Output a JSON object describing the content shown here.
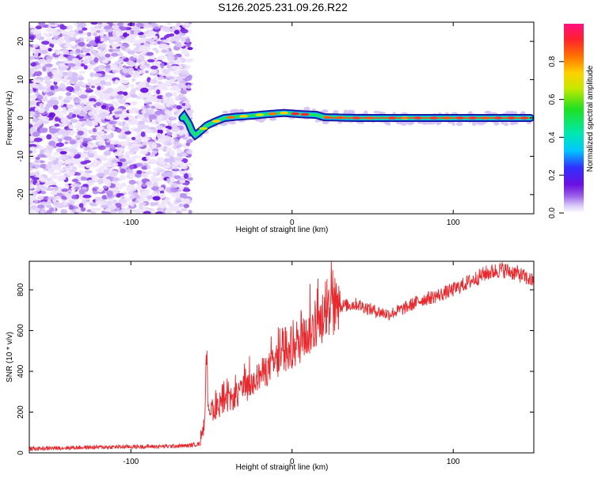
{
  "title": "S126.2025.231.09.26.R22",
  "chart_data": [
    {
      "type": "heatmap",
      "panel": "spectrogram",
      "xlabel": "Height of straight line (km)",
      "ylabel": "Frequency (Hz)",
      "xlim": [
        -163,
        150
      ],
      "ylim": [
        -25,
        25
      ],
      "x_ticks": [
        -100,
        0,
        100
      ],
      "y_ticks": [
        20,
        10,
        0,
        -10,
        -20
      ],
      "noise_region_x": [
        -163,
        -66
      ],
      "carrier_track": [
        {
          "x": -67,
          "y": 0.5
        },
        {
          "x": -64,
          "y": -1.5
        },
        {
          "x": -62,
          "y": -3.5
        },
        {
          "x": -60,
          "y": -4.5
        },
        {
          "x": -57,
          "y": -3.5
        },
        {
          "x": -53,
          "y": -2.0
        },
        {
          "x": -48,
          "y": -1.0
        },
        {
          "x": -42,
          "y": 0.0
        },
        {
          "x": -35,
          "y": 0.3
        },
        {
          "x": -25,
          "y": 0.6
        },
        {
          "x": -15,
          "y": 1.0
        },
        {
          "x": -5,
          "y": 1.3
        },
        {
          "x": 5,
          "y": 1.0
        },
        {
          "x": 15,
          "y": 0.8
        },
        {
          "x": 20,
          "y": 0.2
        },
        {
          "x": 40,
          "y": 0.0
        },
        {
          "x": 80,
          "y": 0.0
        },
        {
          "x": 120,
          "y": 0.0
        },
        {
          "x": 148,
          "y": 0.0
        }
      ],
      "colorbar": {
        "label": "Normalized spectral amplitude",
        "range": [
          0,
          1
        ],
        "ticks": [
          0.0,
          0.2,
          0.4,
          0.6,
          0.8
        ],
        "tick_labels": [
          "0.0",
          "0.2",
          "0.4",
          "0.6",
          "0.8"
        ],
        "colors": [
          "#ffffff",
          "#d8c8f8",
          "#9a5ee8",
          "#6a10e0",
          "#3030ff",
          "#00c8ff",
          "#00e8b0",
          "#20e020",
          "#c8e800",
          "#ffd000",
          "#ff7000",
          "#ff2030",
          "#ff1080"
        ]
      }
    },
    {
      "type": "line",
      "panel": "snr",
      "xlabel": "Height of straight line (km)",
      "ylabel": "SNR (10 * v/v)",
      "xlim": [
        -163,
        150
      ],
      "ylim": [
        0,
        940
      ],
      "x_ticks": [
        -100,
        0,
        100
      ],
      "y_ticks": [
        0,
        200,
        400,
        600,
        800
      ],
      "color": "#e8282c",
      "series": [
        {
          "name": "SNR",
          "x": [
            -163,
            -140,
            -120,
            -100,
            -80,
            -65,
            -57,
            -54,
            -53,
            -52,
            -50,
            -46,
            -40,
            -30,
            -20,
            -10,
            0,
            10,
            20,
            30,
            40,
            50,
            60,
            70,
            80,
            90,
            100,
            110,
            120,
            130,
            140,
            150
          ],
          "values": [
            20,
            25,
            28,
            30,
            32,
            35,
            45,
            150,
            480,
            240,
            200,
            220,
            250,
            300,
            380,
            440,
            490,
            580,
            670,
            720,
            730,
            700,
            680,
            710,
            750,
            770,
            800,
            840,
            880,
            900,
            880,
            840
          ]
        }
      ]
    }
  ]
}
